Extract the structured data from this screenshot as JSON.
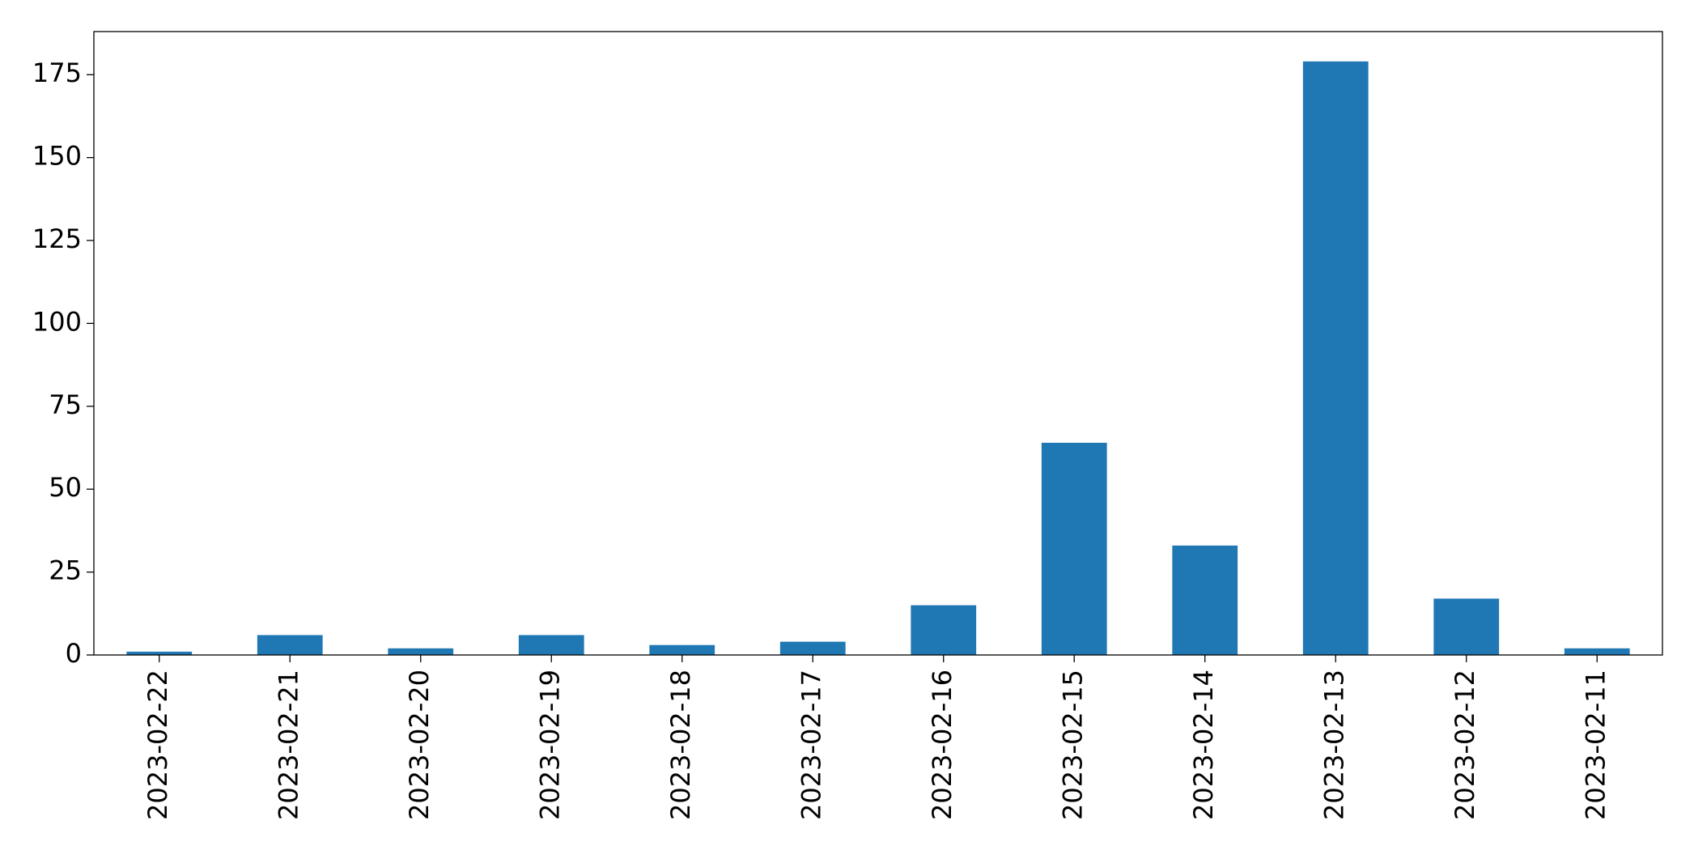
{
  "chart_data": {
    "type": "bar",
    "categories": [
      "2023-02-22",
      "2023-02-21",
      "2023-02-20",
      "2023-02-19",
      "2023-02-18",
      "2023-02-17",
      "2023-02-16",
      "2023-02-15",
      "2023-02-14",
      "2023-02-13",
      "2023-02-12",
      "2023-02-11"
    ],
    "values": [
      1,
      6,
      2,
      6,
      3,
      4,
      15,
      64,
      33,
      179,
      17,
      2
    ],
    "color": "#1f77b4",
    "ylim": [
      0,
      188
    ],
    "yticks": [
      0,
      25,
      50,
      75,
      100,
      125,
      150,
      175
    ],
    "grid": false
  }
}
